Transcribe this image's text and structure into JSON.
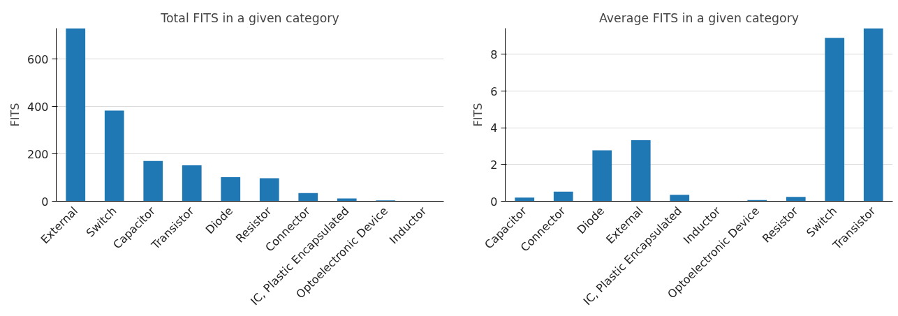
{
  "chart_data": [
    {
      "type": "bar",
      "title": "Total FITS in a given category",
      "ylabel": "FITS",
      "categories": [
        "External",
        "Switch",
        "Capacitor",
        "Transistor",
        "Diode",
        "Resistor",
        "Connector",
        "IC, Plastic Encapsulated",
        "Optoelectronic Device",
        "Inductor"
      ],
      "values": [
        731,
        383,
        170,
        152,
        102,
        97,
        35,
        12,
        4,
        0
      ],
      "color": "#1f77b4",
      "ylim": [
        0,
        731
      ],
      "yticks": [
        0,
        200,
        400,
        600
      ],
      "grid": "y"
    },
    {
      "type": "bar",
      "title": "Average FITS in a given category",
      "ylabel": "FITS",
      "categories": [
        "Capacitor",
        "Connector",
        "Diode",
        "External",
        "IC, Plastic Encapsulated",
        "Inductor",
        "Optoelectronic Device",
        "Resistor",
        "Switch",
        "Transistor"
      ],
      "values": [
        0.2,
        0.52,
        2.77,
        3.32,
        0.35,
        0,
        0.07,
        0.24,
        8.9,
        9.42
      ],
      "color": "#1f77b4",
      "ylim": [
        0,
        9.42
      ],
      "yticks": [
        0,
        2,
        4,
        6,
        8
      ],
      "grid": "y"
    }
  ]
}
